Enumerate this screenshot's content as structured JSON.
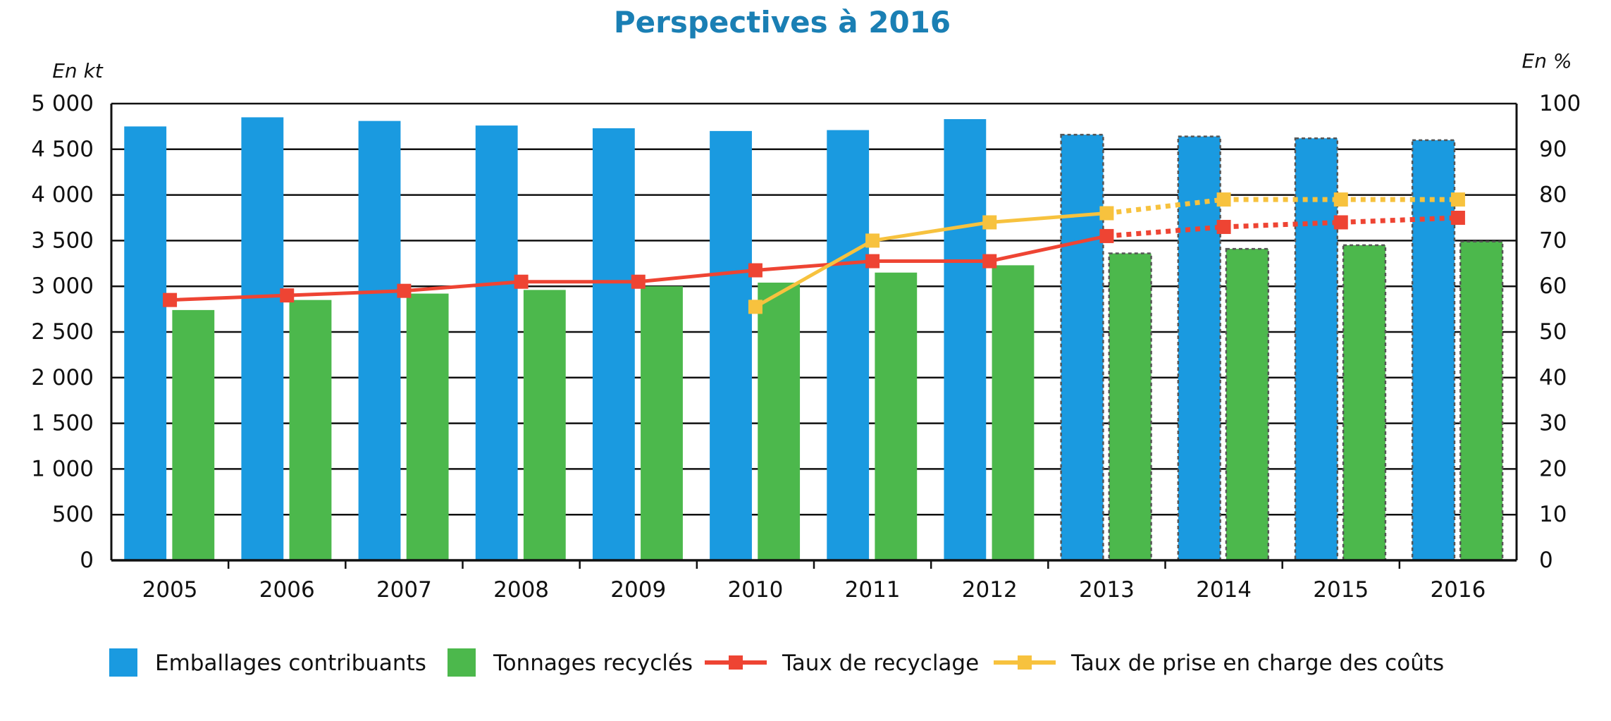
{
  "chart_data": {
    "type": "bar",
    "title": "Perspectives à 2016",
    "y_left_unit": "En kt",
    "y_right_unit": "En %",
    "ylim_left": [
      0,
      5000
    ],
    "ylim_right": [
      0,
      100
    ],
    "y_left_ticks": [
      "0",
      "500",
      "1 000",
      "1 500",
      "2 000",
      "2 500",
      "3 000",
      "3 500",
      "4 000",
      "4 500",
      "5 000"
    ],
    "y_right_ticks": [
      "0",
      "10",
      "20",
      "30",
      "40",
      "50",
      "60",
      "70",
      "80",
      "90",
      "100"
    ],
    "categories": [
      "2005",
      "2006",
      "2007",
      "2008",
      "2009",
      "2010",
      "2011",
      "2012",
      "2013",
      "2014",
      "2015",
      "2016"
    ],
    "projected_from": "2013",
    "grid": true,
    "legend_position": "bottom",
    "series": [
      {
        "name": "Emballages contribuants",
        "kind": "bar",
        "axis": "left",
        "color": "#1a9ae0",
        "values": [
          4750,
          4850,
          4810,
          4760,
          4730,
          4700,
          4710,
          4830,
          4660,
          4640,
          4620,
          4600
        ]
      },
      {
        "name": "Tonnages recyclés",
        "kind": "bar",
        "axis": "left",
        "color": "#4cb84c",
        "values": [
          2740,
          2850,
          2920,
          2960,
          3000,
          3040,
          3150,
          3230,
          3360,
          3410,
          3450,
          3490
        ]
      },
      {
        "name": "Taux de recyclage",
        "kind": "line",
        "axis": "right",
        "color": "#ee4433",
        "values": [
          57,
          58,
          59,
          61,
          61,
          63.5,
          65.5,
          65.5,
          71,
          73,
          74,
          75
        ]
      },
      {
        "name": "Taux de prise en charge des coûts",
        "kind": "line",
        "axis": "right",
        "color": "#f7c23e",
        "values": [
          null,
          null,
          null,
          null,
          null,
          55.5,
          70,
          74,
          76,
          79,
          79,
          79
        ]
      }
    ]
  }
}
